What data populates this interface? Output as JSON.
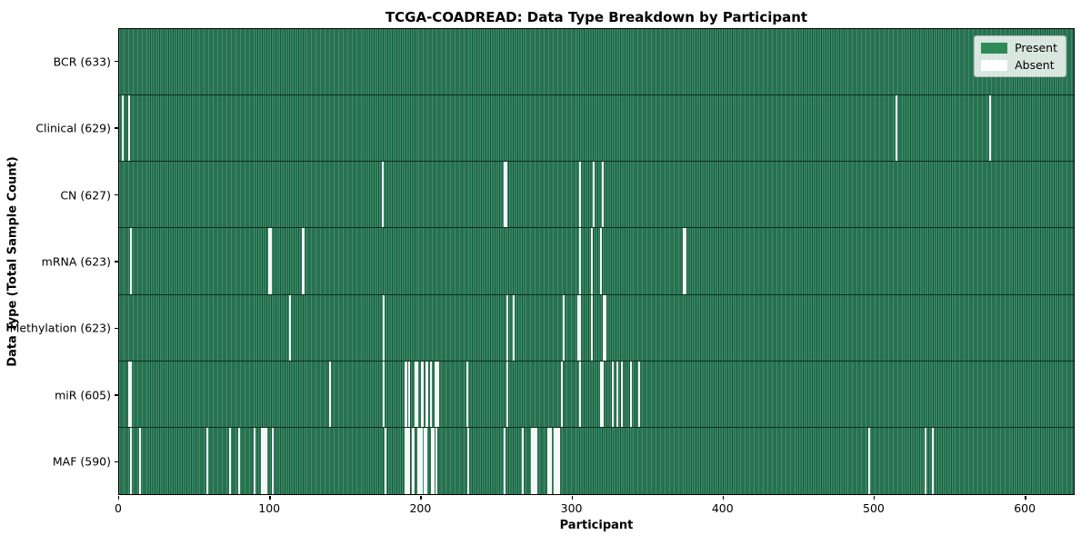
{
  "figure": {
    "title": "TCGA-COADREAD: Data Type Breakdown by Participant",
    "xlabel": "Participant",
    "ylabel": "Data Type (Total Sample Count)"
  },
  "chart_data": {
    "type": "heatmap",
    "title": "TCGA-COADREAD: Data Type Breakdown by Participant",
    "xlabel": "Participant",
    "ylabel": "Data Type (Total Sample Count)",
    "xlim": [
      0,
      633
    ],
    "x_ticks": [
      0,
      100,
      200,
      300,
      400,
      500,
      600
    ],
    "total_participants": 633,
    "grid": false,
    "legend_position": "upper right",
    "legend": [
      {
        "label": "Present",
        "color": "#2e8b57"
      },
      {
        "label": "Absent",
        "color": "#ffffff"
      }
    ],
    "colors": {
      "present_fill": "#38916a",
      "present_edge": "#1b4f36",
      "absent": "#ffffff"
    },
    "rows": [
      {
        "data_type": "BCR",
        "label": "BCR (633)",
        "present_count": 633,
        "absent_participants": []
      },
      {
        "data_type": "Clinical",
        "label": "Clinical (629)",
        "present_count": 629,
        "absent_participants": [
          2,
          6,
          515,
          577
        ]
      },
      {
        "data_type": "CN",
        "label": "CN (627)",
        "present_count": 627,
        "absent_participants": [
          174,
          255,
          256,
          305,
          314,
          320
        ]
      },
      {
        "data_type": "mRNA",
        "label": "mRNA (623)",
        "present_count": 623,
        "absent_participants": [
          7,
          99,
          100,
          121,
          122,
          305,
          313,
          319,
          374,
          375
        ]
      },
      {
        "data_type": "Methylation",
        "label": "Methylation (623)",
        "present_count": 623,
        "absent_participants": [
          113,
          175,
          257,
          261,
          294,
          304,
          305,
          313,
          321,
          322
        ]
      },
      {
        "data_type": "miR",
        "label": "miR (605)",
        "present_count": 605,
        "absent_participants": [
          6,
          7,
          139,
          175,
          189,
          190,
          192,
          196,
          197,
          200,
          201,
          203,
          204,
          206,
          209,
          210,
          211,
          230,
          257,
          293,
          305,
          319,
          320,
          327,
          330,
          333,
          339,
          344
        ]
      },
      {
        "data_type": "MAF",
        "label": "MAF (590)",
        "present_count": 590,
        "absent_participants": [
          7,
          13,
          58,
          73,
          79,
          89,
          94,
          95,
          96,
          97,
          101,
          176,
          189,
          190,
          191,
          192,
          194,
          195,
          198,
          199,
          200,
          202,
          203,
          207,
          208,
          210,
          231,
          255,
          267,
          273,
          274,
          275,
          276,
          284,
          285,
          286,
          288,
          289,
          290,
          291,
          497,
          534,
          539
        ]
      }
    ]
  }
}
